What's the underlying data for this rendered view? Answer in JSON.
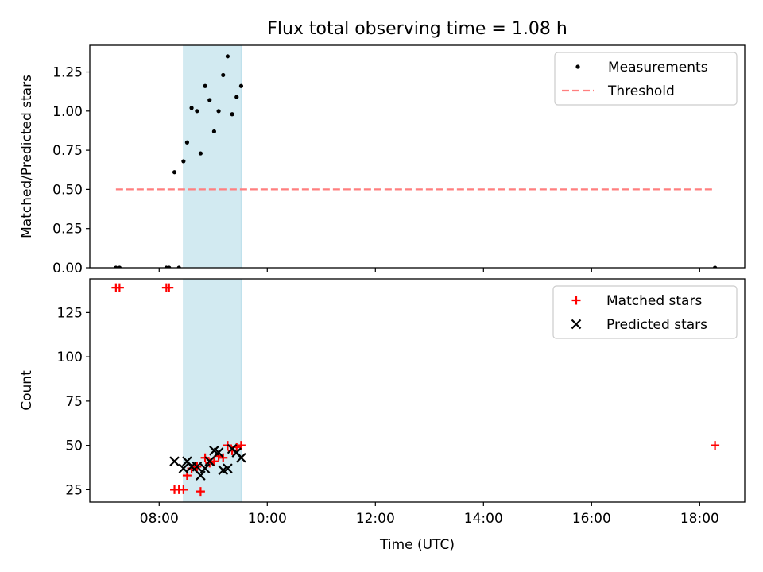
{
  "figure": {
    "title": "Flux total observing time = 1.08 h"
  },
  "chart_data": [
    {
      "type": "scatter",
      "ylabel": "Matched/Predicted stars",
      "xlabel": "",
      "xlim": [
        "06:43",
        "18:50"
      ],
      "ylim": [
        0,
        1.42
      ],
      "yticks": [
        0.0,
        0.25,
        0.5,
        0.75,
        1.0,
        1.25
      ],
      "ytick_labels": [
        "0.00",
        "0.25",
        "0.50",
        "0.75",
        "1.00",
        "1.25"
      ],
      "xticks": [
        "08:00",
        "10:00",
        "12:00",
        "14:00",
        "16:00",
        "18:00"
      ],
      "show_xtick_labels": false,
      "grid": false,
      "legend": {
        "position": "top-right",
        "entries": [
          {
            "label": "Measurements",
            "marker": "dot",
            "color": "#000000"
          },
          {
            "label": "Threshold",
            "marker": "dashed-line",
            "color": "#ff7f7f"
          }
        ]
      },
      "shaded_span": {
        "x": [
          "08:27",
          "09:31"
        ],
        "color": "#add8e6"
      },
      "threshold": {
        "name": "Threshold",
        "x": [
          "07:12",
          "18:17"
        ],
        "y": 0.5,
        "color": "#ff7f7f"
      },
      "series": [
        {
          "name": "Measurements",
          "marker": "dot",
          "color": "#000000",
          "points": [
            [
              "07:12",
              0.0
            ],
            [
              "07:16",
              0.0
            ],
            [
              "08:08",
              0.0
            ],
            [
              "08:11",
              0.0
            ],
            [
              "08:22",
              0.0
            ],
            [
              "08:17",
              0.61
            ],
            [
              "08:27",
              0.68
            ],
            [
              "08:31",
              0.8
            ],
            [
              "08:36",
              1.02
            ],
            [
              "08:42",
              1.0
            ],
            [
              "08:46",
              0.73
            ],
            [
              "08:51",
              1.16
            ],
            [
              "08:56",
              1.07
            ],
            [
              "09:01",
              0.87
            ],
            [
              "09:06",
              1.0
            ],
            [
              "09:11",
              1.23
            ],
            [
              "09:16",
              1.35
            ],
            [
              "09:21",
              0.98
            ],
            [
              "09:26",
              1.09
            ],
            [
              "09:31",
              1.16
            ],
            [
              "18:17",
              0.0
            ]
          ]
        }
      ]
    },
    {
      "type": "scatter",
      "ylabel": "Count",
      "xlabel": "Time (UTC)",
      "xlim": [
        "06:43",
        "18:50"
      ],
      "ylim": [
        18,
        144
      ],
      "yticks": [
        25,
        50,
        75,
        100,
        125
      ],
      "ytick_labels": [
        "25",
        "50",
        "75",
        "100",
        "125"
      ],
      "xticks": [
        "08:00",
        "10:00",
        "12:00",
        "14:00",
        "16:00",
        "18:00"
      ],
      "xtick_labels": [
        "08:00",
        "10:00",
        "12:00",
        "14:00",
        "16:00",
        "18:00"
      ],
      "grid": false,
      "legend": {
        "position": "top-right",
        "entries": [
          {
            "label": "Matched stars",
            "marker": "plus",
            "color": "#ff0000"
          },
          {
            "label": "Predicted stars",
            "marker": "x",
            "color": "#000000"
          }
        ]
      },
      "shaded_span": {
        "x": [
          "08:27",
          "09:31"
        ],
        "color": "#add8e6"
      },
      "series": [
        {
          "name": "Matched stars",
          "marker": "plus",
          "color": "#ff0000",
          "points": [
            [
              "07:12",
              139
            ],
            [
              "07:16",
              139
            ],
            [
              "08:08",
              139
            ],
            [
              "08:11",
              139
            ],
            [
              "08:17",
              25
            ],
            [
              "08:22",
              25
            ],
            [
              "08:27",
              25
            ],
            [
              "08:31",
              33
            ],
            [
              "08:36",
              37
            ],
            [
              "08:42",
              38
            ],
            [
              "08:46",
              24
            ],
            [
              "08:51",
              43
            ],
            [
              "08:56",
              40
            ],
            [
              "09:01",
              41
            ],
            [
              "09:06",
              44
            ],
            [
              "09:11",
              43
            ],
            [
              "09:16",
              50
            ],
            [
              "09:21",
              47
            ],
            [
              "09:26",
              49
            ],
            [
              "09:31",
              50
            ],
            [
              "18:17",
              50
            ]
          ]
        },
        {
          "name": "Predicted stars",
          "marker": "x",
          "color": "#000000",
          "points": [
            [
              "08:17",
              41
            ],
            [
              "08:27",
              37
            ],
            [
              "08:31",
              41
            ],
            [
              "08:36",
              38
            ],
            [
              "08:42",
              38
            ],
            [
              "08:46",
              33
            ],
            [
              "08:51",
              37
            ],
            [
              "08:56",
              41
            ],
            [
              "09:01",
              47
            ],
            [
              "09:06",
              46
            ],
            [
              "09:11",
              36
            ],
            [
              "09:16",
              37
            ],
            [
              "09:21",
              48
            ],
            [
              "09:26",
              46
            ],
            [
              "09:31",
              43
            ]
          ]
        }
      ]
    }
  ]
}
